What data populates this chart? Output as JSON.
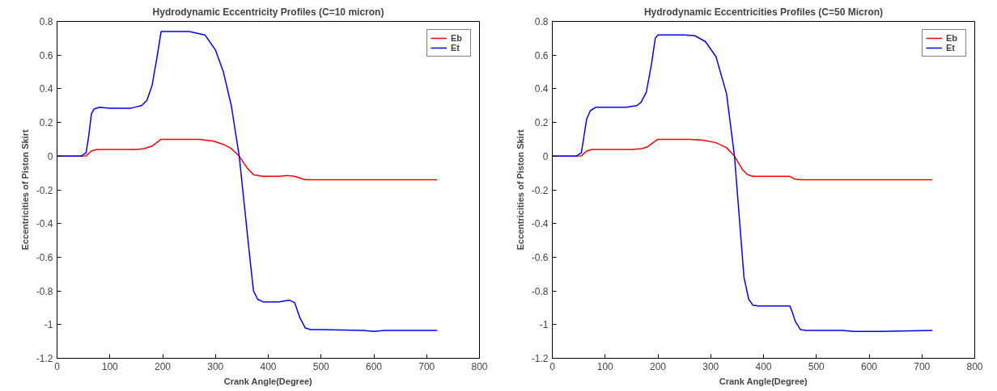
{
  "chart_data": [
    {
      "type": "line",
      "title": "Hydrodynamic Eccentricity Profiles (C=10 micron)",
      "xlabel": "Crank Angle(Degree)",
      "ylabel": "Eccentricities of Piston Skirt",
      "xlim": [
        0,
        800
      ],
      "xticks": [
        0,
        100,
        200,
        300,
        400,
        500,
        600,
        700,
        800
      ],
      "ylim": [
        -1.2,
        0.8
      ],
      "yticks": [
        {
          "value": -1.2,
          "label": "-1.2"
        },
        {
          "value": -1,
          "label": "-1"
        },
        {
          "value": -0.8,
          "label": "-0.8"
        },
        {
          "value": -0.6,
          "label": "-0.6"
        },
        {
          "value": -0.4,
          "label": "-0.4"
        },
        {
          "value": -0.2,
          "label": "-0.2"
        },
        {
          "value": 0,
          "label": "0"
        },
        {
          "value": 0.2,
          "label": "0.2"
        },
        {
          "value": 0.4,
          "label": "0.4"
        },
        {
          "value": 0.6,
          "label": "0.6"
        },
        {
          "value": 0.8,
          "label": "0.8"
        }
      ],
      "grid": false,
      "legend": "top right",
      "series": [
        {
          "name": "Eb",
          "color": "#ff0000",
          "x": [
            0,
            45,
            55,
            65,
            75,
            150,
            165,
            180,
            197,
            270,
            295,
            315,
            330,
            345,
            360,
            372,
            390,
            420,
            435,
            450,
            470,
            720
          ],
          "values": [
            0,
            0,
            0.002,
            0.03,
            0.04,
            0.04,
            0.045,
            0.06,
            0.1,
            0.1,
            0.09,
            0.07,
            0.045,
            0,
            -0.07,
            -0.11,
            -0.12,
            -0.12,
            -0.115,
            -0.12,
            -0.14,
            -0.14
          ]
        },
        {
          "name": "Et",
          "color": "#0000ff",
          "x": [
            0,
            45,
            55,
            60,
            65,
            70,
            80,
            100,
            140,
            160,
            170,
            180,
            190,
            197,
            250,
            280,
            300,
            315,
            330,
            345,
            355,
            365,
            372,
            380,
            390,
            420,
            440,
            450,
            460,
            470,
            480,
            500,
            580,
            600,
            620,
            720
          ],
          "values": [
            0,
            0,
            0.02,
            0.12,
            0.25,
            0.28,
            0.29,
            0.285,
            0.285,
            0.3,
            0.33,
            0.42,
            0.6,
            0.74,
            0.74,
            0.72,
            0.63,
            0.5,
            0.3,
            0,
            -0.3,
            -0.6,
            -0.8,
            -0.85,
            -0.865,
            -0.865,
            -0.855,
            -0.87,
            -0.96,
            -1.02,
            -1.03,
            -1.03,
            -1.035,
            -1.04,
            -1.035,
            -1.035
          ]
        }
      ]
    },
    {
      "type": "line",
      "title": "Hydrodynamic Eccentricities Profiles (C=50 Micron)",
      "xlabel": "Crank Angle(Degree)",
      "ylabel": "Eccentricities of Piston Skirt",
      "xlim": [
        0,
        800
      ],
      "xticks": [
        0,
        100,
        200,
        300,
        400,
        500,
        600,
        700,
        800
      ],
      "ylim": [
        -1.2,
        0.8
      ],
      "yticks": [
        {
          "value": -1.2,
          "label": "-1.2"
        },
        {
          "value": -1,
          "label": "-1"
        },
        {
          "value": -0.8,
          "label": "-0.8"
        },
        {
          "value": -0.6,
          "label": "-0.6"
        },
        {
          "value": -0.4,
          "label": "-0.4"
        },
        {
          "value": -0.2,
          "label": "-0.2"
        },
        {
          "value": 0,
          "label": "0"
        },
        {
          "value": 0.2,
          "label": "0.2"
        },
        {
          "value": 0.4,
          "label": "0.4"
        },
        {
          "value": 0.6,
          "label": "0.6"
        },
        {
          "value": 0.8,
          "label": "0.8"
        }
      ],
      "grid": false,
      "legend": "top right",
      "series": [
        {
          "name": "Eb",
          "color": "#ff0000",
          "x": [
            0,
            55,
            65,
            75,
            150,
            170,
            180,
            195,
            200,
            260,
            285,
            310,
            330,
            345,
            360,
            370,
            380,
            450,
            458,
            470,
            720
          ],
          "values": [
            0,
            0.002,
            0.03,
            0.04,
            0.04,
            0.045,
            0.055,
            0.09,
            0.1,
            0.1,
            0.095,
            0.08,
            0.05,
            0,
            -0.08,
            -0.11,
            -0.12,
            -0.12,
            -0.135,
            -0.14,
            -0.14
          ]
        },
        {
          "name": "Et",
          "color": "#0000ff",
          "x": [
            0,
            45,
            55,
            60,
            65,
            72,
            82,
            140,
            160,
            168,
            178,
            188,
            195,
            200,
            250,
            270,
            290,
            310,
            330,
            345,
            355,
            363,
            372,
            380,
            390,
            450,
            455,
            460,
            470,
            480,
            550,
            570,
            620,
            720
          ],
          "values": [
            0,
            0,
            0.02,
            0.12,
            0.22,
            0.27,
            0.29,
            0.29,
            0.3,
            0.32,
            0.38,
            0.55,
            0.7,
            0.72,
            0.72,
            0.715,
            0.68,
            0.59,
            0.37,
            0,
            -0.4,
            -0.72,
            -0.85,
            -0.885,
            -0.89,
            -0.89,
            -0.93,
            -0.98,
            -1.03,
            -1.035,
            -1.035,
            -1.04,
            -1.04,
            -1.035
          ]
        }
      ]
    }
  ]
}
